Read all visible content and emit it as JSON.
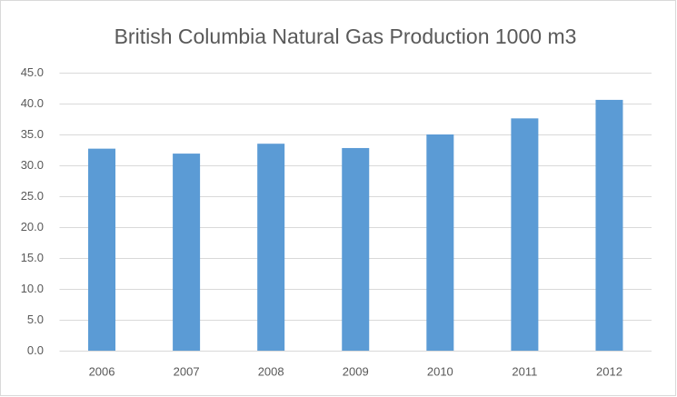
{
  "chart_data": {
    "type": "bar",
    "title": "British Columbia Natural Gas Production 1000 m3",
    "categories": [
      "2006",
      "2007",
      "2008",
      "2009",
      "2010",
      "2011",
      "2012"
    ],
    "values": [
      32.7,
      31.9,
      33.5,
      32.8,
      35.0,
      37.6,
      40.6
    ],
    "color": "#5b9bd5",
    "ylim": [
      0,
      45
    ],
    "yticks": [
      {
        "value": 0,
        "label": "0.0"
      },
      {
        "value": 5,
        "label": "5.0"
      },
      {
        "value": 10,
        "label": "10.0"
      },
      {
        "value": 15,
        "label": "15.0"
      },
      {
        "value": 20,
        "label": "20.0"
      },
      {
        "value": 25,
        "label": "25.0"
      },
      {
        "value": 30,
        "label": "30.0"
      },
      {
        "value": 35,
        "label": "35.0"
      },
      {
        "value": 40,
        "label": "40.0"
      },
      {
        "value": 45,
        "label": "45.0"
      }
    ],
    "grid": true
  }
}
